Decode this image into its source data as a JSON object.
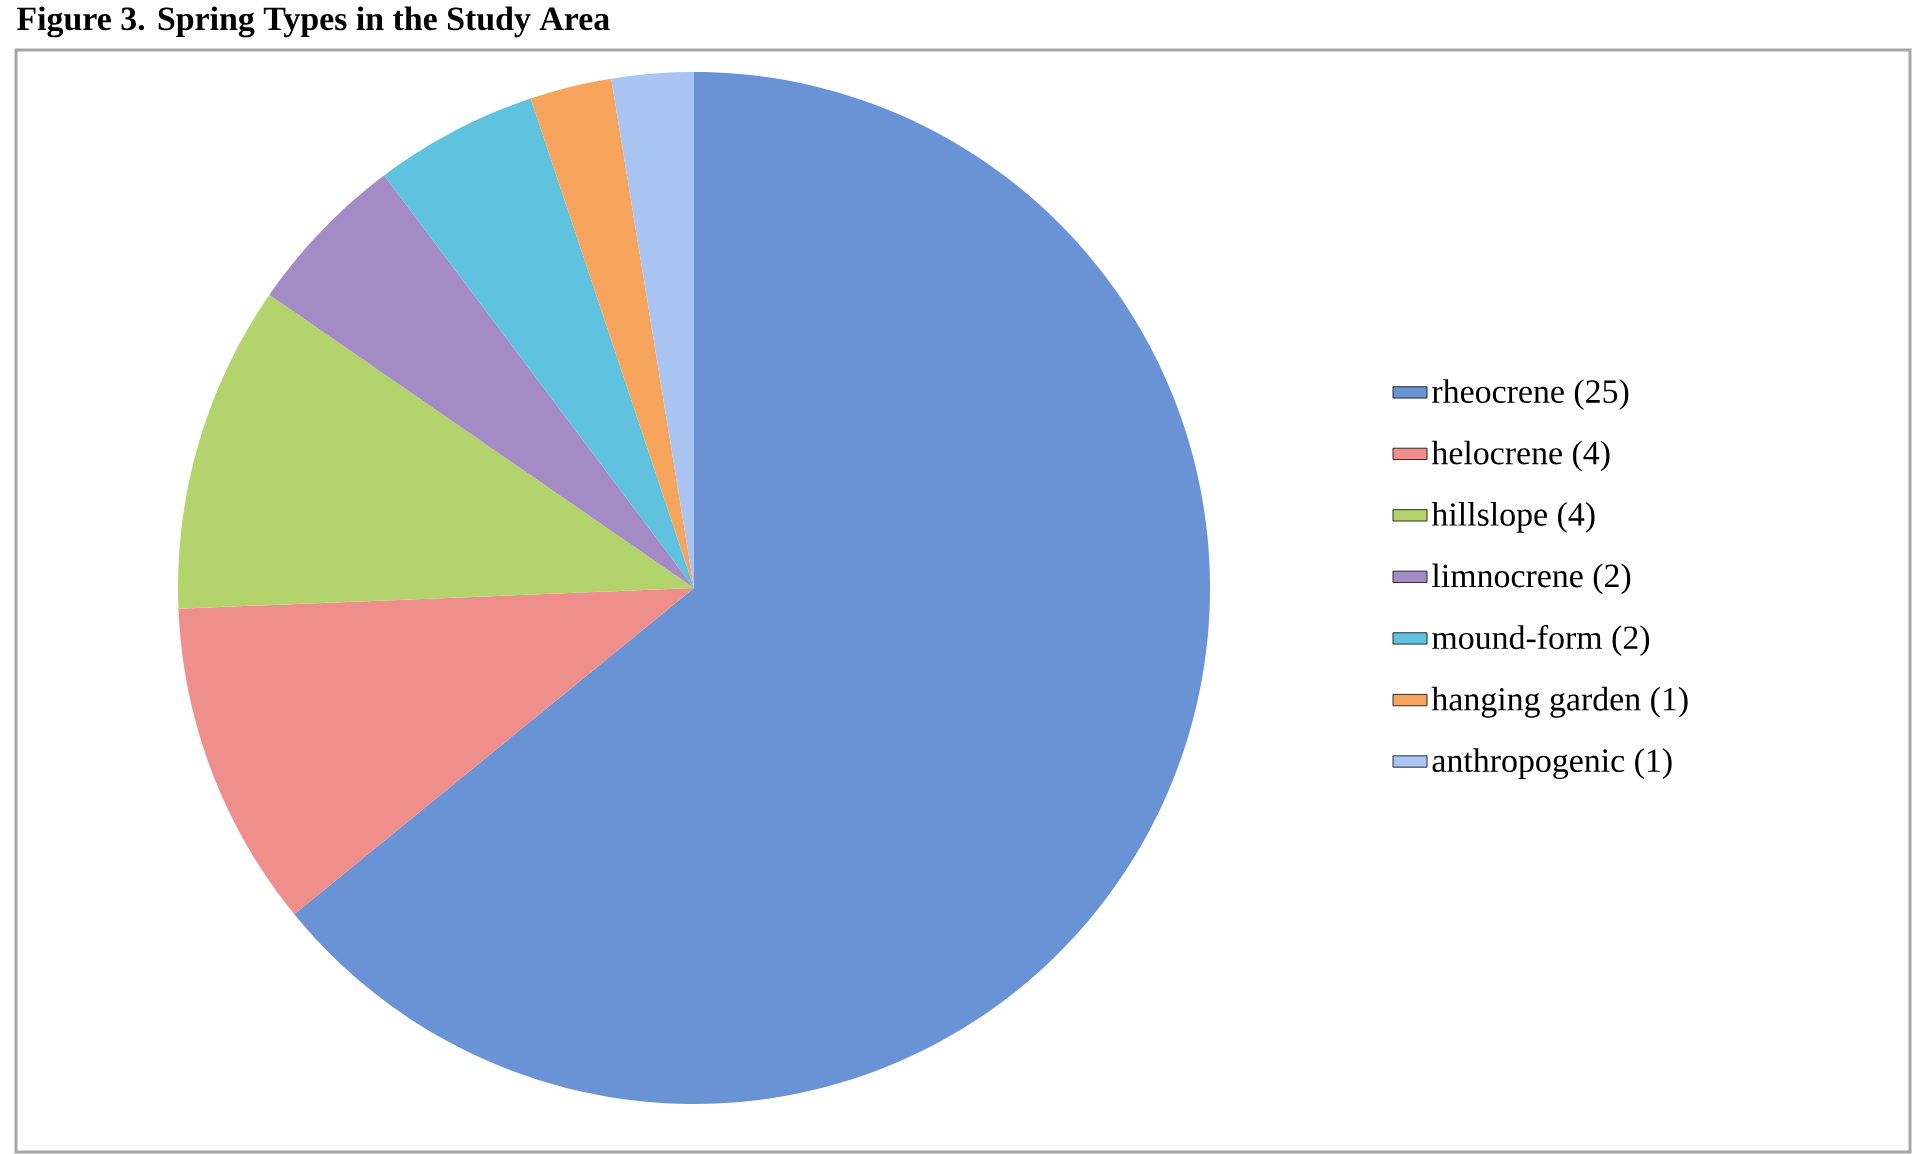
{
  "chart_data": {
    "type": "pie",
    "title": "Figure 3. Spring Types in the Study Area",
    "categories": [
      "rheocrene (25)",
      "helocrene (4)",
      "hillslope (4)",
      "limnocrene (2)",
      "mound-form (2)",
      "hanging garden (1)",
      "anthropogenic (1)"
    ],
    "values": [
      25,
      4,
      4,
      2,
      2,
      1,
      1
    ],
    "colors": [
      "#6a93d6",
      "#ee8f8b",
      "#b3d46c",
      "#a48bc6",
      "#5fc3e0",
      "#f7a55c",
      "#abc5f2"
    ],
    "legend": "right"
  }
}
